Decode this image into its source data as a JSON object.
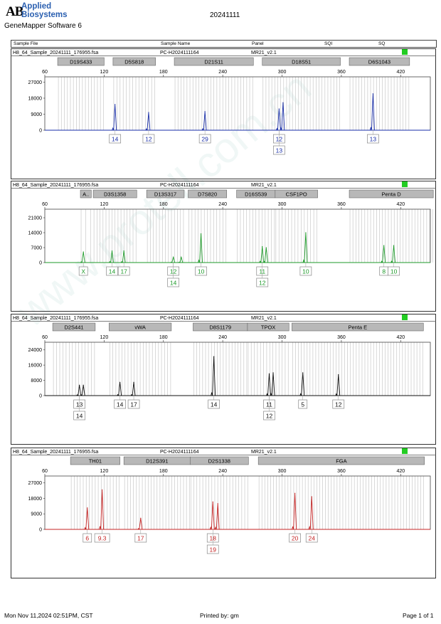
{
  "header": {
    "logo_mark": "AB",
    "logo_line1": "Applied",
    "logo_line2": "Biosystems",
    "software": "GeneMapper Software 6",
    "date": "20241111",
    "columns": [
      "Sample File",
      "Sample Name",
      "Panel",
      "SQI",
      "SQ"
    ]
  },
  "watermark": "www.protell.com.cn",
  "footer": {
    "timestamp": "Mon Nov 11,2024 02:51PM, CST",
    "printed_by": "Printed by: gm",
    "page": "Page 1 of 1"
  },
  "colors": {
    "blue": "#1a2fa8",
    "green": "#1e9a2a",
    "black": "#111111",
    "red": "#c42323",
    "status_green": "#22cc22"
  },
  "chart_data": [
    {
      "type": "line",
      "dye": "blue",
      "sample_file": "H8_64_Sample_20241111_176955.fsa",
      "sample_name": "PC-H2024111164",
      "panel": "MR21_v2.1",
      "x_ticks": [
        60,
        120,
        180,
        240,
        300,
        360,
        420
      ],
      "y_ticks": [
        27000,
        18000,
        9000,
        0
      ],
      "ylim": [
        0,
        30000
      ],
      "markers": [
        {
          "name": "D19S433",
          "start": 73,
          "end": 120
        },
        {
          "name": "D5S818",
          "start": 129,
          "end": 172
        },
        {
          "name": "D21S11",
          "start": 191,
          "end": 271
        },
        {
          "name": "D18S51",
          "start": 280,
          "end": 359
        },
        {
          "name": "D6S1043",
          "start": 368,
          "end": 429
        }
      ],
      "peaks": [
        {
          "x": 131,
          "y": 14500,
          "labels": [
            "14"
          ]
        },
        {
          "x": 165,
          "y": 10000,
          "labels": [
            "12"
          ]
        },
        {
          "x": 222,
          "y": 10500,
          "labels": [
            "29"
          ]
        },
        {
          "x": 297,
          "y": 12000,
          "labels": [
            "12",
            "13"
          ]
        },
        {
          "x": 301,
          "y": 15500,
          "labels": []
        },
        {
          "x": 392,
          "y": 20500,
          "labels": [
            "13"
          ]
        }
      ]
    },
    {
      "type": "line",
      "dye": "green",
      "sample_file": "H8_64_Sample_20241111_176955.fsa",
      "sample_name": "PC-H2024111164",
      "panel": "MR21_v2.1",
      "x_ticks": [
        60,
        120,
        180,
        240,
        300,
        360,
        420
      ],
      "y_ticks": [
        21000,
        14000,
        7000,
        0
      ],
      "ylim": [
        0,
        25000
      ],
      "markers": [
        {
          "name": "A..",
          "start": 96,
          "end": 107
        },
        {
          "name": "D3S1358",
          "start": 109,
          "end": 153
        },
        {
          "name": "D13S317",
          "start": 163,
          "end": 201
        },
        {
          "name": "D7S820",
          "start": 205,
          "end": 244
        },
        {
          "name": "D16S539",
          "start": 254,
          "end": 293
        },
        {
          "name": "CSF1PO",
          "start": 293,
          "end": 336
        },
        {
          "name": "Penta D",
          "start": 368,
          "end": 453
        }
      ],
      "peaks": [
        {
          "x": 99,
          "y": 5000,
          "labels": [
            "X"
          ]
        },
        {
          "x": 128,
          "y": 5500,
          "labels": [
            "14"
          ]
        },
        {
          "x": 140,
          "y": 5500,
          "labels": [
            "17"
          ]
        },
        {
          "x": 190,
          "y": 2500,
          "labels": [
            "12",
            "14"
          ]
        },
        {
          "x": 198,
          "y": 2500,
          "labels": []
        },
        {
          "x": 218,
          "y": 13500,
          "labels": [
            "10"
          ]
        },
        {
          "x": 280,
          "y": 7500,
          "labels": [
            "11",
            "12"
          ]
        },
        {
          "x": 284,
          "y": 7000,
          "labels": []
        },
        {
          "x": 324,
          "y": 14000,
          "labels": [
            "10"
          ]
        },
        {
          "x": 403,
          "y": 8000,
          "labels": [
            "8"
          ]
        },
        {
          "x": 413,
          "y": 8000,
          "labels": [
            "10"
          ]
        }
      ]
    },
    {
      "type": "line",
      "dye": "black",
      "sample_file": "H8_64_Sample_20241111_176955.fsa",
      "sample_name": "PC-H2024111164",
      "panel": "MR21_v2.1",
      "x_ticks": [
        60,
        120,
        180,
        240,
        300,
        360,
        420
      ],
      "y_ticks": [
        24000,
        16000,
        8000,
        0
      ],
      "ylim": [
        0,
        28000
      ],
      "markers": [
        {
          "name": "D2S441",
          "start": 68,
          "end": 111
        },
        {
          "name": "vWA",
          "start": 125,
          "end": 188
        },
        {
          "name": "D8S1179",
          "start": 210,
          "end": 265
        },
        {
          "name": "TPOX",
          "start": 265,
          "end": 307
        },
        {
          "name": "Penta E",
          "start": 310,
          "end": 443
        }
      ],
      "peaks": [
        {
          "x": 95,
          "y": 5500,
          "labels": [
            "13",
            "14"
          ]
        },
        {
          "x": 99,
          "y": 5500,
          "labels": []
        },
        {
          "x": 136,
          "y": 7000,
          "labels": [
            "14"
          ]
        },
        {
          "x": 150,
          "y": 7000,
          "labels": [
            "17"
          ]
        },
        {
          "x": 231,
          "y": 20500,
          "labels": [
            "14"
          ]
        },
        {
          "x": 287,
          "y": 11500,
          "labels": [
            "11",
            "12"
          ]
        },
        {
          "x": 291,
          "y": 12000,
          "labels": []
        },
        {
          "x": 321,
          "y": 12000,
          "labels": [
            "5"
          ]
        },
        {
          "x": 357,
          "y": 11000,
          "labels": [
            "12"
          ]
        }
      ]
    },
    {
      "type": "line",
      "dye": "red",
      "sample_file": "H8_64_Sample_20241111_176955.fsa",
      "sample_name": "PC-H2024111164",
      "panel": "MR21_v2.1",
      "x_ticks": [
        60,
        120,
        180,
        240,
        300,
        360,
        420
      ],
      "y_ticks": [
        27000,
        18000,
        9000,
        0
      ],
      "ylim": [
        0,
        31000
      ],
      "markers": [
        {
          "name": "TH01",
          "start": 86,
          "end": 136
        },
        {
          "name": "D12S391",
          "start": 140,
          "end": 207
        },
        {
          "name": "D2S1338",
          "start": 207,
          "end": 266
        },
        {
          "name": "FGA",
          "start": 276,
          "end": 444
        }
      ],
      "peaks": [
        {
          "x": 103,
          "y": 12500,
          "labels": [
            "6"
          ]
        },
        {
          "x": 118,
          "y": 23000,
          "labels": [
            "9.3"
          ]
        },
        {
          "x": 157,
          "y": 6500,
          "labels": [
            "17"
          ]
        },
        {
          "x": 230,
          "y": 16000,
          "labels": [
            "18",
            "19"
          ]
        },
        {
          "x": 235,
          "y": 15000,
          "labels": []
        },
        {
          "x": 313,
          "y": 21000,
          "labels": [
            "20"
          ]
        },
        {
          "x": 330,
          "y": 19000,
          "labels": [
            "24"
          ]
        }
      ]
    }
  ]
}
